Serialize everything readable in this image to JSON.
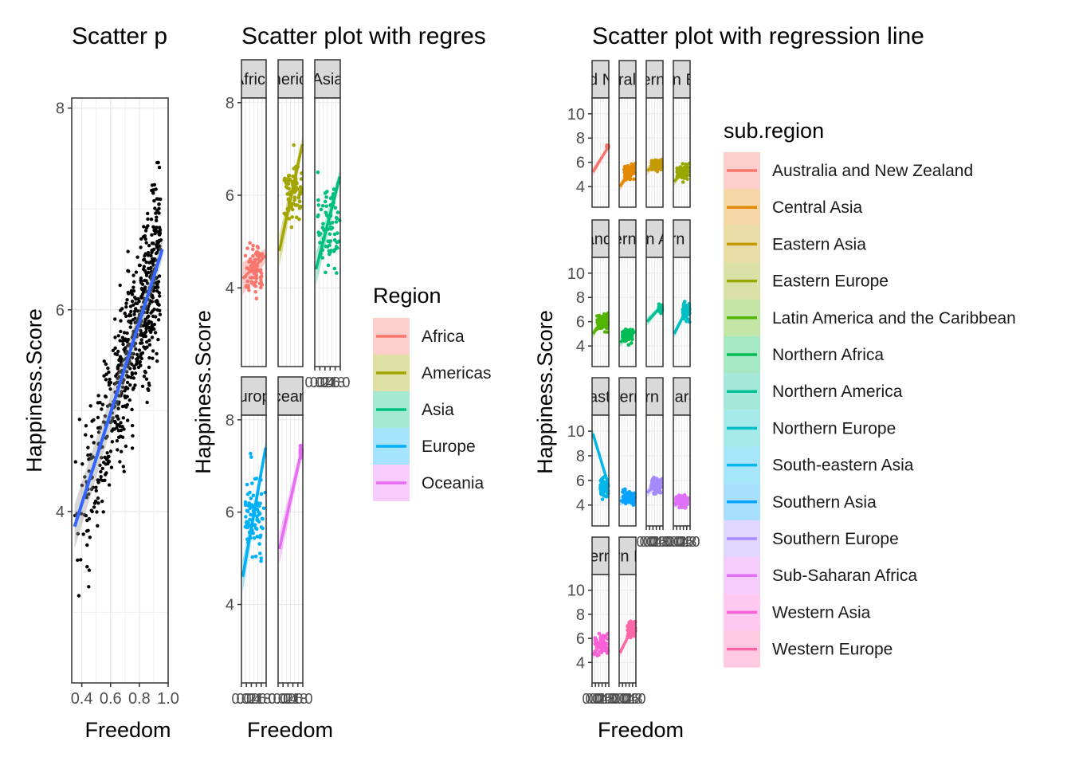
{
  "chart_data": [
    {
      "type": "scatter",
      "title": "Scatter p",
      "xlabel": "Freedom",
      "ylabel": "Happiness.Score",
      "xlim": [
        0.33,
        1.0
      ],
      "ylim": [
        2.3,
        8.1
      ],
      "xticks": [
        0.4,
        0.6,
        0.8,
        1.0
      ],
      "xtick_labels": [
        "0.4",
        "0.6",
        "0.8",
        "1.0"
      ],
      "yticks": [
        4,
        6,
        8
      ],
      "ytick_labels": [
        "4",
        "6",
        "8"
      ],
      "grid": true,
      "point_color": "#000000",
      "regression": {
        "x": [
          0.35,
          0.96
        ],
        "y": [
          3.85,
          6.6
        ],
        "color": "#3366FF"
      }
    },
    {
      "type": "scatter",
      "title": "Scatter plot with regres",
      "xlabel": "Freedom",
      "ylabel": "Happiness.Score",
      "ylim": [
        2.3,
        8.1
      ],
      "yticks": [
        4,
        6,
        8
      ],
      "ytick_labels": [
        "4",
        "6",
        "8"
      ],
      "xtick_labels": [
        "0.0",
        "0.2",
        "0.4",
        "0.6",
        "0.8",
        "1.0"
      ],
      "legend": {
        "title": "Region",
        "position": "right"
      },
      "panels": [
        {
          "strip": "Africa",
          "color": "#F8766D",
          "x_range": [
            0.15,
            0.85
          ],
          "y_center": 4.35,
          "y_spread": 0.55,
          "reg": [
            4.2,
            4.7
          ]
        },
        {
          "strip": "Americas",
          "color": "#A3A500",
          "x_range": [
            0.25,
            0.95
          ],
          "y_center": 6.1,
          "y_spread": 0.7,
          "reg": [
            4.8,
            7.1
          ]
        },
        {
          "strip": "Asia",
          "color": "#00BF7D",
          "x_range": [
            0.1,
            0.98
          ],
          "y_center": 5.3,
          "y_spread": 0.9,
          "reg": [
            4.4,
            6.4
          ]
        },
        {
          "strip": "Europe",
          "color": "#00B0F6",
          "x_range": [
            0.15,
            0.97
          ],
          "y_center": 5.9,
          "y_spread": 0.85,
          "reg": [
            4.6,
            7.4
          ]
        },
        {
          "strip": "Oceania",
          "color": "#E76BF3",
          "x_range": [
            0.9,
            0.96
          ],
          "y_center": 7.3,
          "y_spread": 0.1,
          "reg": [
            5.2,
            7.4
          ]
        }
      ]
    },
    {
      "type": "scatter",
      "title": "Scatter plot with regression line",
      "xlabel": "Freedom",
      "ylabel": "Happiness.Score",
      "ylim": [
        2.3,
        11.3
      ],
      "yticks": [
        4,
        6,
        8,
        10
      ],
      "ytick_labels": [
        "4",
        "6",
        "8",
        "10"
      ],
      "xtick_labels": [
        "0.0",
        "0.2",
        "0.4",
        "0.6",
        "0.8",
        "1.0"
      ],
      "legend": {
        "title": "sub.region",
        "position": "right"
      },
      "panels": [
        {
          "strip": "Australia and New Zealand",
          "color": "#F8766D",
          "x_range": [
            0.88,
            0.97
          ],
          "y_center": 7.3,
          "y_spread": 0.1,
          "reg": [
            5.2,
            7.3
          ]
        },
        {
          "strip": "Central Asia",
          "color": "#E38900",
          "x_range": [
            0.3,
            0.9
          ],
          "y_center": 5.2,
          "y_spread": 0.6,
          "reg": [
            4.0,
            6.0
          ]
        },
        {
          "strip": "Eastern Asia",
          "color": "#C49A00",
          "x_range": [
            0.3,
            0.95
          ],
          "y_center": 5.8,
          "y_spread": 0.45,
          "reg": [
            5.3,
            6.3
          ]
        },
        {
          "strip": "Eastern Europe",
          "color": "#99A800",
          "x_range": [
            0.2,
            0.9
          ],
          "y_center": 5.2,
          "y_spread": 0.6,
          "reg": [
            4.4,
            6.0
          ]
        },
        {
          "strip": "Latin America and the Caribbean",
          "color": "#53B400",
          "x_range": [
            0.3,
            0.95
          ],
          "y_center": 6.0,
          "y_spread": 0.75,
          "reg": [
            5.0,
            6.8
          ]
        },
        {
          "strip": "Northern Africa",
          "color": "#00BC56",
          "x_range": [
            0.2,
            0.8
          ],
          "y_center": 4.8,
          "y_spread": 0.5,
          "reg": [
            4.3,
            5.2
          ]
        },
        {
          "strip": "Northern America",
          "color": "#00C094",
          "x_range": [
            0.75,
            0.95
          ],
          "y_center": 7.1,
          "y_spread": 0.3,
          "reg": [
            6.0,
            7.4
          ]
        },
        {
          "strip": "Northern Europe",
          "color": "#00BFC4",
          "x_range": [
            0.55,
            0.97
          ],
          "y_center": 6.9,
          "y_spread": 0.7,
          "reg": [
            5.0,
            7.5
          ]
        },
        {
          "strip": "South-eastern Asia",
          "color": "#00B6EB",
          "x_range": [
            0.5,
            0.98
          ],
          "y_center": 5.4,
          "y_spread": 0.7,
          "reg": [
            9.8,
            5.6
          ]
        },
        {
          "strip": "Southern Asia",
          "color": "#06A4FF",
          "x_range": [
            0.2,
            0.95
          ],
          "y_center": 4.6,
          "y_spread": 0.5,
          "reg": [
            4.3,
            4.8
          ]
        },
        {
          "strip": "Southern Europe",
          "color": "#A58AFF",
          "x_range": [
            0.3,
            0.9
          ],
          "y_center": 5.6,
          "y_spread": 0.6,
          "reg": [
            5.0,
            6.2
          ]
        },
        {
          "strip": "Sub-Saharan Africa",
          "color": "#DF70F8",
          "x_range": [
            0.15,
            0.9
          ],
          "y_center": 4.3,
          "y_spread": 0.55,
          "reg": [
            4.1,
            4.6
          ]
        },
        {
          "strip": "Western Asia",
          "color": "#FB61D7",
          "x_range": [
            0.15,
            0.95
          ],
          "y_center": 5.5,
          "y_spread": 0.9,
          "reg": [
            4.6,
            6.5
          ]
        },
        {
          "strip": "Western Europe",
          "color": "#FF66A8",
          "x_range": [
            0.5,
            0.97
          ],
          "y_center": 6.8,
          "y_spread": 0.6,
          "reg": [
            4.8,
            7.4
          ]
        }
      ]
    }
  ]
}
